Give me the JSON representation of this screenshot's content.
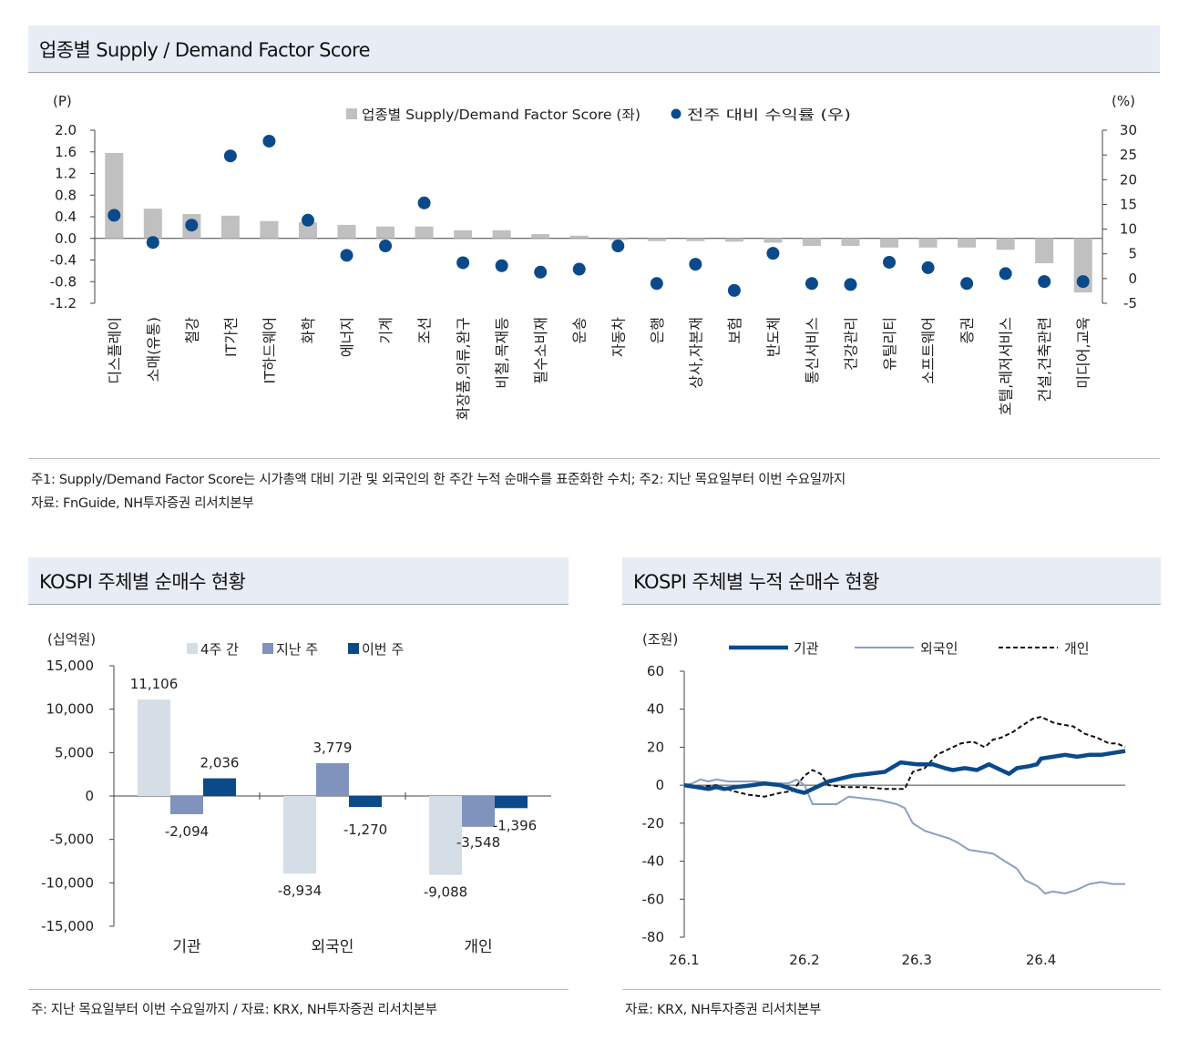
{
  "top_panel": {
    "title": "업종별 Supply / Demand Factor Score",
    "note1": "주1: Supply/Demand Factor Score는 시가총액 대비 기관 및 외국인의 한 주간 누적 순매수를 표준화한 수치; 주2: 지난 목요일부터 이번 수요일까지",
    "note2": "자료: FnGuide, NH투자증권 리서치본부"
  },
  "left_panel": {
    "title": "KOSPI 주체별 순매수 현황",
    "note": "주: 지난 목요일부터 이번 수요일까지 / 자료: KRX, NH투자증권 리서치본부"
  },
  "right_panel": {
    "title": "KOSPI 주체별 누적 순매수 현황",
    "note": "자료: KRX, NH투자증권 리서치본부"
  },
  "colors": {
    "score_bar": "#c0c0c0",
    "return_dot": "#0b4a8a",
    "four_week": "#d5dde6",
    "last_week": "#7f93bd",
    "this_week": "#0b4a8a",
    "institution": "#0b4a8a",
    "foreigner": "#8aa0c2",
    "individual": "#111111"
  },
  "chart_data": [
    {
      "type": "bar",
      "title": "업종별 Supply / Demand Factor Score",
      "ylabel_left": "(P)",
      "ylabel_right": "(%)",
      "ylim_left": [
        -1.2,
        2.0
      ],
      "ylim_right": [
        -5,
        30
      ],
      "yticks_left": [
        "2.0",
        "1.6",
        "1.2",
        "0.8",
        "0.4",
        "0.0",
        "-0.4",
        "-0.8",
        "-1.2"
      ],
      "yticks_right": [
        "30",
        "25",
        "20",
        "15",
        "10",
        "5",
        "0",
        "-5"
      ],
      "legend": [
        "업종별 Supply/Demand Factor Score (좌)",
        "전주 대비 수익률 (우)"
      ],
      "categories": [
        "디스플레이",
        "소매(유통)",
        "철강",
        "IT가전",
        "IT하드웨어",
        "화학",
        "에너지",
        "기계",
        "조선",
        "화장품,의류,완구",
        "비철,목재등",
        "필수소비재",
        "운송",
        "자동차",
        "은행",
        "상사,자본재",
        "보험",
        "반도체",
        "통신서비스",
        "건강관리",
        "유틸리티",
        "소프트웨어",
        "증권",
        "호텔,레저서비스",
        "건설,건축관련",
        "미디어,교육"
      ],
      "series": [
        {
          "name": "업종별 Supply/Demand Factor Score (좌)",
          "type": "bar",
          "axis": "left",
          "values": [
            1.58,
            0.55,
            0.45,
            0.42,
            0.32,
            0.3,
            0.25,
            0.22,
            0.22,
            0.15,
            0.15,
            0.08,
            0.05,
            -0.03,
            -0.05,
            -0.05,
            -0.06,
            -0.08,
            -0.14,
            -0.14,
            -0.17,
            -0.17,
            -0.17,
            -0.21,
            -0.46,
            -1.0
          ]
        },
        {
          "name": "전주 대비 수익률 (우)",
          "type": "scatter",
          "axis": "right",
          "values": [
            12.8,
            7.3,
            10.8,
            24.8,
            27.8,
            11.8,
            4.7,
            6.6,
            15.3,
            3.2,
            2.6,
            1.3,
            1.9,
            6.6,
            -1.0,
            2.9,
            -2.4,
            5.1,
            -1.0,
            -1.2,
            3.3,
            2.2,
            -1.0,
            1.0,
            -0.6,
            -0.6
          ]
        }
      ]
    },
    {
      "type": "bar",
      "title": "KOSPI 주체별 순매수 현황",
      "ylabel": "(십억원)",
      "ylim": [
        -15000,
        15000
      ],
      "yticks": [
        "15,000",
        "10,000",
        "5,000",
        "0",
        "-5,000",
        "-10,000",
        "-15,000"
      ],
      "categories": [
        "기관",
        "외국인",
        "개인"
      ],
      "series": [
        {
          "name": "4주 간",
          "values": [
            11106,
            -8934,
            -9088
          ]
        },
        {
          "name": "지난 주",
          "values": [
            -2094,
            3779,
            -3548
          ]
        },
        {
          "name": "이번 주",
          "values": [
            2036,
            -1270,
            -1396
          ]
        }
      ],
      "data_labels": [
        [
          "11,106",
          "-8,934",
          "-9,088"
        ],
        [
          "-2,094",
          "3,779",
          "-3,548"
        ],
        [
          "2,036",
          "-1,270",
          "-1,396"
        ]
      ]
    },
    {
      "type": "line",
      "title": "KOSPI 주체별 누적 순매수 현황",
      "ylabel": "(조원)",
      "ylim": [
        -80,
        60
      ],
      "yticks": [
        "60",
        "40",
        "20",
        "0",
        "-20",
        "-40",
        "-60",
        "-80"
      ],
      "xlim": [
        0,
        110
      ],
      "xticks": [
        {
          "x": 0,
          "label": "26.1"
        },
        {
          "x": 30,
          "label": "26.2"
        },
        {
          "x": 58,
          "label": "26.3"
        },
        {
          "x": 89,
          "label": "26.4"
        }
      ],
      "series": [
        {
          "name": "기관",
          "points": [
            [
              0,
              0
            ],
            [
              3,
              -1
            ],
            [
              6,
              -2
            ],
            [
              8,
              -1
            ],
            [
              10,
              -2
            ],
            [
              13,
              -1
            ],
            [
              17,
              0
            ],
            [
              20,
              1
            ],
            [
              24,
              0
            ],
            [
              28,
              -3
            ],
            [
              30,
              -4
            ],
            [
              33,
              -1
            ],
            [
              36,
              2
            ],
            [
              38,
              3
            ],
            [
              42,
              5
            ],
            [
              46,
              6
            ],
            [
              50,
              7
            ],
            [
              54,
              12
            ],
            [
              58,
              11
            ],
            [
              62,
              11
            ],
            [
              65,
              9
            ],
            [
              67,
              8
            ],
            [
              70,
              9
            ],
            [
              73,
              8
            ],
            [
              76,
              11
            ],
            [
              79,
              8
            ],
            [
              81,
              6
            ],
            [
              83,
              9
            ],
            [
              86,
              10
            ],
            [
              88,
              11
            ],
            [
              89,
              14
            ],
            [
              92,
              15
            ],
            [
              95,
              16
            ],
            [
              98,
              15
            ],
            [
              101,
              16
            ],
            [
              104,
              16
            ],
            [
              107,
              17
            ],
            [
              110,
              18
            ]
          ]
        },
        {
          "name": "외국인",
          "points": [
            [
              0,
              0
            ],
            [
              2,
              1
            ],
            [
              4,
              3
            ],
            [
              6,
              2
            ],
            [
              8,
              3
            ],
            [
              11,
              2
            ],
            [
              14,
              2
            ],
            [
              18,
              2
            ],
            [
              22,
              1
            ],
            [
              26,
              1
            ],
            [
              28,
              3
            ],
            [
              30,
              0
            ],
            [
              32,
              -10
            ],
            [
              35,
              -10
            ],
            [
              38,
              -10
            ],
            [
              41,
              -6
            ],
            [
              45,
              -7
            ],
            [
              49,
              -8
            ],
            [
              53,
              -10
            ],
            [
              55,
              -12
            ],
            [
              57,
              -20
            ],
            [
              60,
              -24
            ],
            [
              63,
              -26
            ],
            [
              66,
              -28
            ],
            [
              68,
              -30
            ],
            [
              71,
              -34
            ],
            [
              74,
              -35
            ],
            [
              77,
              -36
            ],
            [
              80,
              -40
            ],
            [
              83,
              -44
            ],
            [
              85,
              -50
            ],
            [
              88,
              -53
            ],
            [
              90,
              -57
            ],
            [
              92,
              -56
            ],
            [
              95,
              -57
            ],
            [
              98,
              -55
            ],
            [
              101,
              -52
            ],
            [
              104,
              -51
            ],
            [
              107,
              -52
            ],
            [
              110,
              -52
            ]
          ]
        },
        {
          "name": "개인",
          "points": [
            [
              0,
              0
            ],
            [
              4,
              -1
            ],
            [
              8,
              0
            ],
            [
              12,
              -3
            ],
            [
              16,
              -5
            ],
            [
              20,
              -6
            ],
            [
              24,
              -4
            ],
            [
              27,
              -3
            ],
            [
              30,
              5
            ],
            [
              32,
              8
            ],
            [
              34,
              6
            ],
            [
              36,
              0
            ],
            [
              40,
              -1
            ],
            [
              45,
              -1
            ],
            [
              50,
              -2
            ],
            [
              53,
              -2
            ],
            [
              55,
              -2
            ],
            [
              57,
              7
            ],
            [
              60,
              9
            ],
            [
              63,
              16
            ],
            [
              66,
              19
            ],
            [
              69,
              22
            ],
            [
              72,
              23
            ],
            [
              75,
              20
            ],
            [
              77,
              24
            ],
            [
              79,
              25
            ],
            [
              82,
              28
            ],
            [
              84,
              31
            ],
            [
              87,
              35
            ],
            [
              89,
              36
            ],
            [
              92,
              33
            ],
            [
              94,
              32
            ],
            [
              97,
              31
            ],
            [
              100,
              27
            ],
            [
              103,
              25
            ],
            [
              106,
              22
            ],
            [
              108,
              22
            ],
            [
              110,
              20
            ]
          ]
        }
      ]
    }
  ]
}
